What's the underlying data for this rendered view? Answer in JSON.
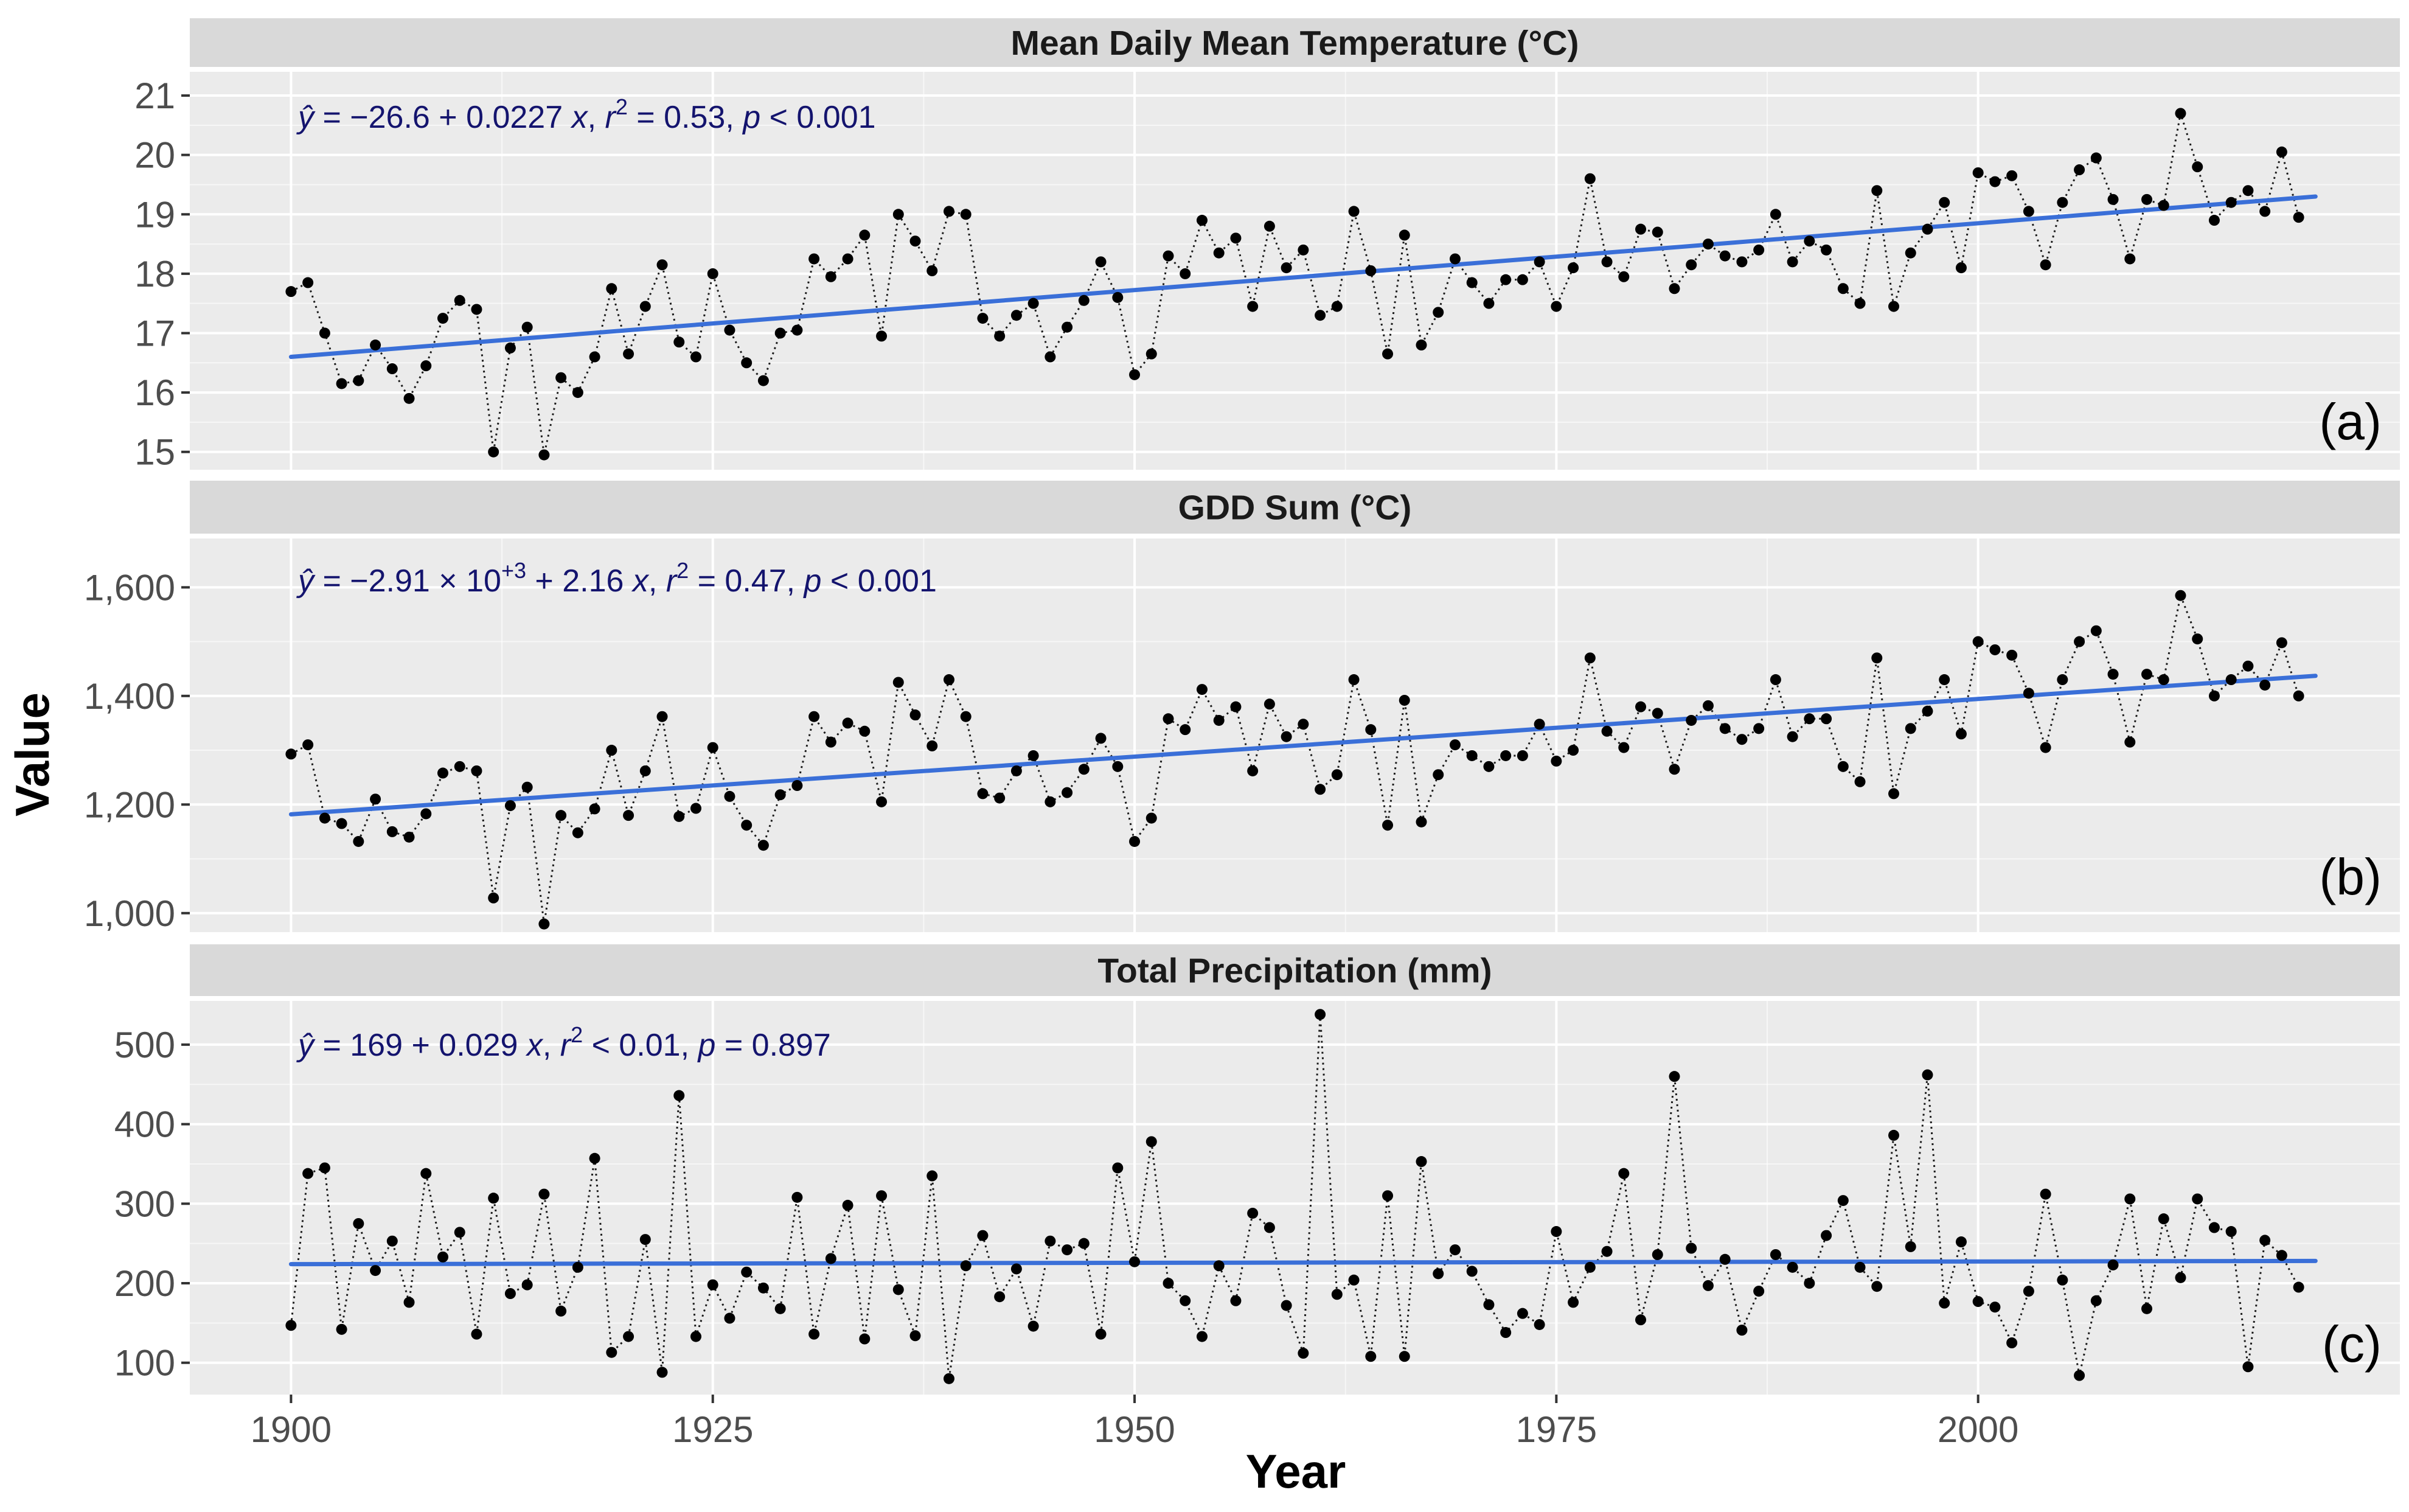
{
  "colors": {
    "panel_bg": "#EBEBEB",
    "strip_bg": "#D9D9D9",
    "grid_major": "#FFFFFF",
    "trend_line": "#3A6FD8",
    "points": "#000000",
    "equation_text": "#14146E"
  },
  "chart_data": {
    "type": "line",
    "xlabel": "Year",
    "ylabel": "Value",
    "xlim": [
      1894,
      2025
    ],
    "x_ticks": [
      1900,
      1925,
      1950,
      1975,
      2000
    ],
    "x_tick_labels": [
      "1900",
      "1925",
      "1950",
      "1975",
      "2000"
    ],
    "panels": [
      {
        "title": "Mean Daily Mean Temperature (°C)",
        "label": "(a)",
        "equation_parts": [
          "ŷ",
          " = −26.6 + 0.0227 ",
          "x",
          ", ",
          "r",
          "2",
          " = 0.53, ",
          "p",
          " < 0.001"
        ],
        "ylim": [
          14.7,
          21.4
        ],
        "y_ticks": [
          15,
          16,
          17,
          18,
          19,
          20,
          21
        ],
        "y_tick_labels": [
          "15",
          "16",
          "17",
          "18",
          "19",
          "20",
          "21"
        ],
        "trend": {
          "x": [
            1900,
            2020
          ],
          "y": [
            16.6,
            19.3
          ]
        },
        "x_start": 1900,
        "values": [
          17.7,
          17.85,
          17.0,
          16.15,
          16.2,
          16.8,
          16.4,
          15.9,
          16.45,
          17.25,
          17.55,
          17.4,
          15.0,
          16.75,
          17.1,
          14.95,
          16.25,
          16.0,
          16.6,
          17.75,
          16.65,
          17.45,
          18.15,
          16.85,
          16.6,
          18.0,
          17.05,
          16.5,
          16.2,
          17.0,
          17.05,
          18.25,
          17.95,
          18.25,
          18.65,
          16.95,
          19.0,
          18.55,
          18.05,
          19.05,
          19.0,
          17.25,
          16.95,
          17.3,
          17.5,
          16.6,
          17.1,
          17.55,
          18.2,
          17.6,
          16.3,
          16.65,
          18.3,
          18.0,
          18.9,
          18.35,
          18.6,
          17.45,
          18.8,
          18.1,
          18.4,
          17.3,
          17.45,
          19.05,
          18.05,
          16.65,
          18.65,
          16.8,
          17.35,
          18.25,
          17.85,
          17.5,
          17.9,
          17.9,
          18.2,
          17.45,
          18.1,
          19.6,
          18.2,
          17.95,
          18.75,
          18.7,
          17.75,
          18.15,
          18.5,
          18.3,
          18.2,
          18.4,
          19.0,
          18.2,
          18.55,
          18.4,
          17.75,
          17.5,
          19.4,
          17.45,
          18.35,
          18.75,
          19.2,
          18.1,
          19.7,
          19.55,
          19.65,
          19.05,
          18.15,
          19.2,
          19.75,
          19.95,
          19.25,
          18.25,
          19.25,
          19.15,
          20.7,
          19.8,
          18.9,
          19.2,
          19.4,
          19.05,
          20.05,
          18.95
        ]
      },
      {
        "title": "GDD Sum (°C)",
        "label": "(b)",
        "equation_parts": [
          "ŷ",
          " = −2.91 × 10",
          "+3",
          " + 2.16 ",
          "x",
          ", ",
          "r",
          "2",
          " = 0.47, ",
          "p",
          " < 0.001"
        ],
        "ylim": [
          965,
          1690
        ],
        "y_ticks": [
          1000,
          1200,
          1400,
          1600
        ],
        "y_tick_labels": [
          "1,000",
          "1,200",
          "1,400",
          "1,600"
        ],
        "trend": {
          "x": [
            1900,
            2020
          ],
          "y": [
            1182,
            1437
          ]
        },
        "x_start": 1900,
        "values": [
          1293,
          1310,
          1175,
          1165,
          1132,
          1210,
          1150,
          1140,
          1183,
          1258,
          1270,
          1262,
          1028,
          1198,
          1232,
          980,
          1180,
          1148,
          1192,
          1300,
          1180,
          1262,
          1362,
          1178,
          1193,
          1305,
          1215,
          1162,
          1125,
          1218,
          1235,
          1362,
          1315,
          1350,
          1335,
          1205,
          1425,
          1365,
          1308,
          1430,
          1362,
          1220,
          1212,
          1262,
          1290,
          1205,
          1222,
          1265,
          1322,
          1270,
          1132,
          1175,
          1358,
          1338,
          1412,
          1355,
          1380,
          1262,
          1385,
          1325,
          1348,
          1228,
          1255,
          1430,
          1338,
          1162,
          1392,
          1168,
          1255,
          1310,
          1290,
          1270,
          1290,
          1290,
          1348,
          1280,
          1300,
          1470,
          1335,
          1305,
          1380,
          1368,
          1265,
          1355,
          1382,
          1340,
          1320,
          1340,
          1430,
          1325,
          1358,
          1358,
          1270,
          1242,
          1470,
          1220,
          1340,
          1372,
          1430,
          1330,
          1500,
          1485,
          1475,
          1405,
          1305,
          1430,
          1500,
          1520,
          1440,
          1315,
          1440,
          1430,
          1585,
          1505,
          1400,
          1430,
          1455,
          1420,
          1498,
          1400
        ]
      },
      {
        "title": "Total Precipitation (mm)",
        "label": "(c)",
        "equation_parts": [
          "ŷ",
          " = 169 + 0.029 ",
          "x",
          ", ",
          "r",
          "2",
          " < 0.01, ",
          "p",
          " = 0.897"
        ],
        "ylim": [
          60,
          555
        ],
        "y_ticks": [
          100,
          200,
          300,
          400,
          500
        ],
        "y_tick_labels": [
          "100",
          "200",
          "300",
          "400",
          "500"
        ],
        "trend": {
          "x": [
            1900,
            2020
          ],
          "y": [
            224,
            228
          ]
        },
        "x_start": 1900,
        "values": [
          147,
          338,
          345,
          142,
          275,
          216,
          253,
          176,
          338,
          233,
          264,
          136,
          307,
          187,
          198,
          312,
          165,
          220,
          357,
          113,
          133,
          255,
          88,
          436,
          133,
          198,
          156,
          214,
          194,
          168,
          308,
          136,
          231,
          298,
          130,
          310,
          192,
          134,
          335,
          80,
          222,
          260,
          183,
          218,
          146,
          253,
          242,
          250,
          136,
          345,
          227,
          378,
          200,
          178,
          133,
          222,
          178,
          288,
          270,
          172,
          112,
          538,
          186,
          204,
          108,
          310,
          108,
          353,
          212,
          242,
          215,
          173,
          138,
          162,
          148,
          265,
          176,
          220,
          240,
          338,
          154,
          236,
          460,
          244,
          197,
          230,
          141,
          190,
          236,
          220,
          200,
          260,
          304,
          220,
          196,
          386,
          246,
          462,
          175,
          252,
          177,
          170,
          125,
          190,
          312,
          204,
          84,
          178,
          223,
          306,
          168,
          281,
          207,
          306,
          270,
          265,
          95,
          254,
          235,
          195
        ]
      }
    ]
  }
}
